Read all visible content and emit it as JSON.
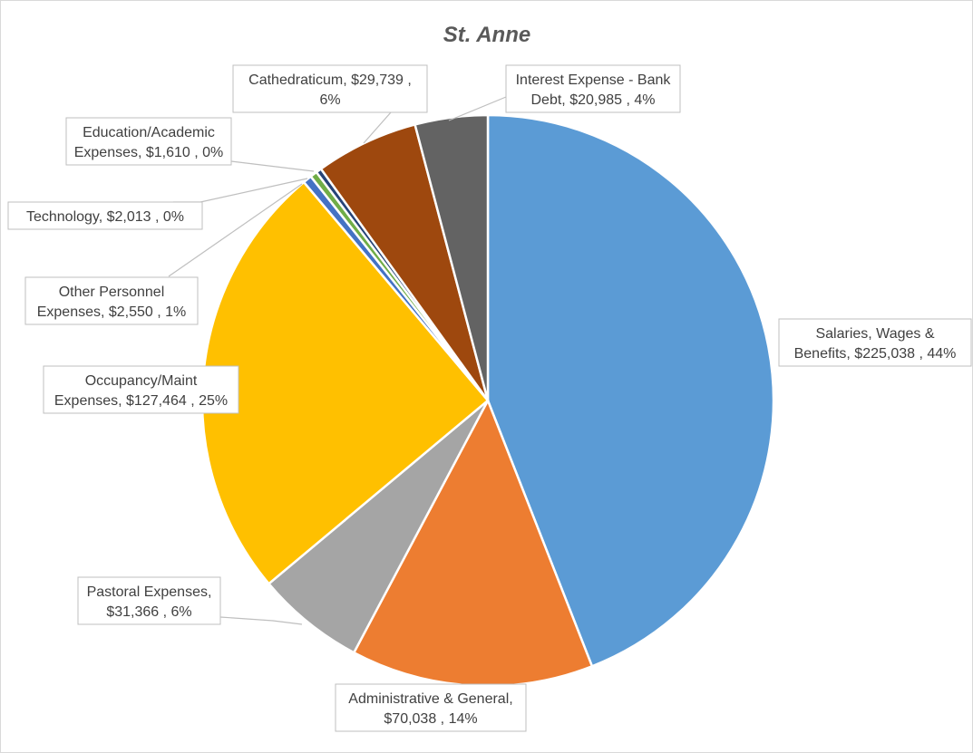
{
  "chart_data": {
    "type": "pie",
    "title": "St. Anne",
    "slices": [
      {
        "label": "Salaries, Wages & Benefits",
        "value": 225038,
        "value_text": "$225,038",
        "percent_text": "44%",
        "color": "#5b9bd5"
      },
      {
        "label": "Administrative & General",
        "value": 70038,
        "value_text": "$70,038",
        "percent_text": "14%",
        "color": "#ed7d31"
      },
      {
        "label": "Pastoral Expenses",
        "value": 31366,
        "value_text": "$31,366",
        "percent_text": "6%",
        "color": "#a5a5a5"
      },
      {
        "label": "Occupancy/Maint Expenses",
        "value": 127464,
        "value_text": "$127,464",
        "percent_text": "25%",
        "color": "#ffc000"
      },
      {
        "label": "Other Personnel Expenses",
        "value": 2550,
        "value_text": "$2,550",
        "percent_text": "1%",
        "color": "#4472c4"
      },
      {
        "label": "Technology",
        "value": 2013,
        "value_text": "$2,013",
        "percent_text": "0%",
        "color": "#70ad47"
      },
      {
        "label": "Education/Academic Expenses",
        "value": 1610,
        "value_text": "$1,610",
        "percent_text": "0%",
        "color": "#264478"
      },
      {
        "label": "Cathedraticum",
        "value": 29739,
        "value_text": "$29,739",
        "percent_text": "6%",
        "color": "#9e480e"
      },
      {
        "label": "Interest Expense - Bank Debt",
        "value": 20985,
        "value_text": "$20,985",
        "percent_text": "4%",
        "color": "#636363"
      }
    ],
    "labels": [
      {
        "lines": [
          "Salaries, Wages &",
          "Benefits,  $225,038 , 44%"
        ]
      },
      {
        "lines": [
          "Administrative & General,",
          "$70,038 , 14%"
        ]
      },
      {
        "lines": [
          "Pastoral Expenses,",
          "$31,366 , 6%"
        ]
      },
      {
        "lines": [
          "Occupancy/Maint",
          "Expenses,  $127,464 , 25%"
        ]
      },
      {
        "lines": [
          "Other Personnel",
          "Expenses,  $2,550 , 1%"
        ]
      },
      {
        "lines": [
          "Technology,  $2,013 , 0%"
        ]
      },
      {
        "lines": [
          "Education/Academic",
          "Expenses,  $1,610 , 0%"
        ]
      },
      {
        "lines": [
          "Cathedraticum,  $29,739 ,",
          "6%"
        ]
      },
      {
        "lines": [
          "Interest Expense - Bank",
          "Debt,  $20,985 , 4%"
        ]
      }
    ],
    "legend": "none",
    "start_angle_deg": 0,
    "direction": "clockwise"
  }
}
